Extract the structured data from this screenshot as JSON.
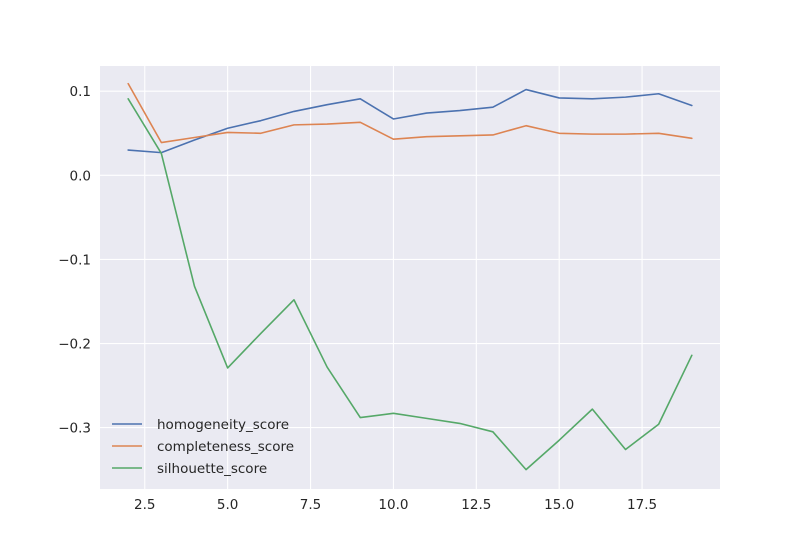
{
  "chart_data": {
    "type": "line",
    "title": "",
    "xlabel": "",
    "ylabel": "",
    "xlim": [
      1.15,
      19.85
    ],
    "ylim": [
      -0.373,
      0.13
    ],
    "xticks": [
      2.5,
      5.0,
      7.5,
      10.0,
      12.5,
      15.0,
      17.5
    ],
    "xtick_labels": [
      "2.5",
      "5.0",
      "7.5",
      "10.0",
      "12.5",
      "15.0",
      "17.5"
    ],
    "yticks": [
      0.1,
      0.0,
      -0.1,
      -0.2,
      -0.3
    ],
    "ytick_labels": [
      "0.1",
      "0.0",
      "−0.1",
      "−0.2",
      "−0.3"
    ],
    "grid": true,
    "legend_position": "lower-left",
    "background": "#eaeaf2",
    "x": [
      2,
      3,
      4,
      5,
      6,
      7,
      8,
      9,
      10,
      11,
      12,
      13,
      14,
      15,
      16,
      17,
      18,
      19
    ],
    "series": [
      {
        "name": "homogeneity_score",
        "color": "#4c72b0",
        "values": [
          0.03,
          0.027,
          0.042,
          0.056,
          0.065,
          0.076,
          0.084,
          0.091,
          0.067,
          0.074,
          0.077,
          0.081,
          0.102,
          0.092,
          0.091,
          0.093,
          0.097,
          0.083
        ]
      },
      {
        "name": "completeness_score",
        "color": "#dd8452",
        "values": [
          0.109,
          0.039,
          0.045,
          0.051,
          0.05,
          0.06,
          0.061,
          0.063,
          0.043,
          0.046,
          0.047,
          0.048,
          0.059,
          0.05,
          0.049,
          0.049,
          0.05,
          0.044
        ]
      },
      {
        "name": "silhouette_score",
        "color": "#55a868",
        "values": [
          0.091,
          0.026,
          -0.132,
          -0.229,
          -0.188,
          -0.148,
          -0.228,
          -0.288,
          -0.283,
          -0.289,
          -0.295,
          -0.305,
          -0.35,
          -0.315,
          -0.278,
          -0.326,
          -0.296,
          -0.214
        ]
      }
    ]
  }
}
